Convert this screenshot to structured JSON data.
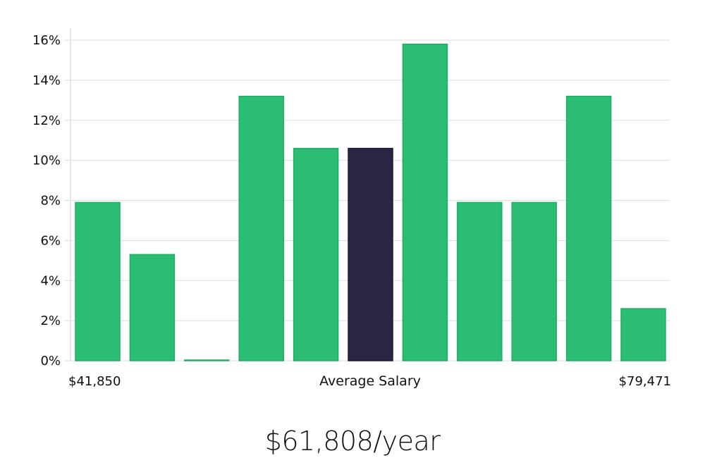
{
  "chart_data": {
    "type": "bar",
    "title": "",
    "xlabel": "Average Salary",
    "ylabel": "",
    "x_range_labels": {
      "min": "$41,850",
      "max": "$79,471"
    },
    "values": [
      7.9,
      5.3,
      0,
      13.2,
      10.6,
      10.6,
      15.8,
      7.9,
      7.9,
      13.2,
      2.6
    ],
    "highlight_index": 5,
    "y_ticks": [
      "0%",
      "2%",
      "4%",
      "6%",
      "8%",
      "10%",
      "12%",
      "14%",
      "16%"
    ],
    "ylim": [
      0,
      16.6
    ],
    "grid": true,
    "legend": "none",
    "colors": {
      "bar": "#2bbd74",
      "bar_stroke": "#1fae66",
      "highlight": "#282545",
      "grid": "#dddddd",
      "axis": "#cccccc"
    }
  },
  "average_salary": "$61,808/year"
}
